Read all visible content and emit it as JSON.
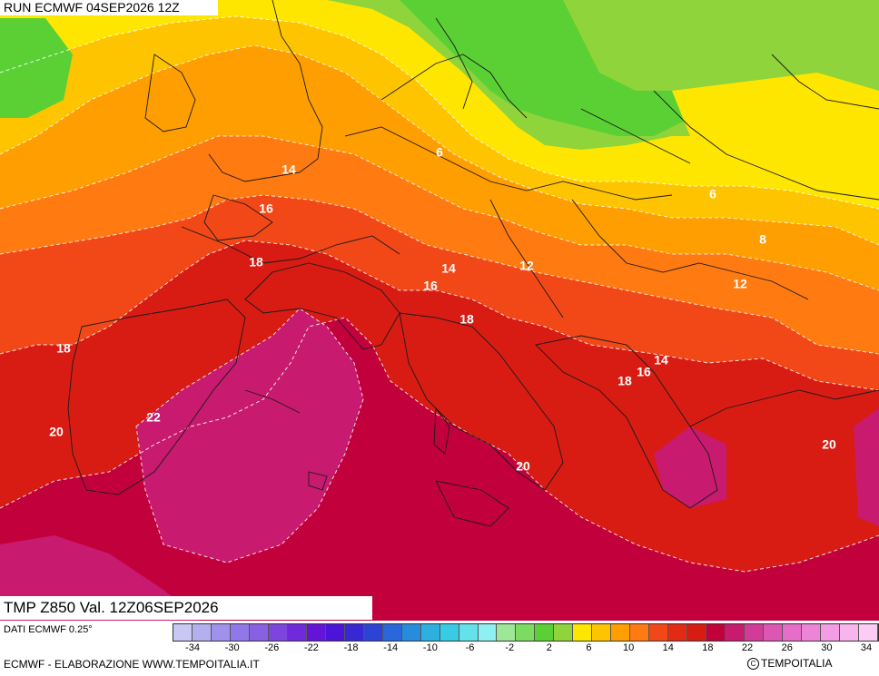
{
  "header": {
    "run_label": "RUN ECMWF 04SEP2026 12Z"
  },
  "map": {
    "field_label": "TMP Z850 Val. 12Z06SEP2026",
    "isotherm_labels": [
      "6",
      "14",
      "16",
      "18",
      "18",
      "20",
      "22",
      "6",
      "8",
      "12",
      "14",
      "16",
      "18",
      "12",
      "14",
      "16",
      "18",
      "20",
      "20"
    ],
    "palette": {
      "c6": "#5ad034",
      "c8": "#8fd43a",
      "c10": "#ffe600",
      "c12": "#ffc400",
      "c14": "#ff9e00",
      "c16": "#ff7a10",
      "c18": "#f24818",
      "c20": "#d81c14",
      "c22": "#c2003c",
      "c24": "#c81a6e"
    }
  },
  "footer": {
    "source": "DATI ECMWF 0.25°",
    "credit": "ECMWF - ELABORAZIONE WWW.TEMPOITALIA.IT",
    "brand": "TEMPOITALIA",
    "brand_icon": "copyright-icon"
  },
  "legend": {
    "colors": [
      "#c8c8f5",
      "#b4b0f0",
      "#a092ec",
      "#9078e8",
      "#8860e2",
      "#7c46de",
      "#702adc",
      "#6414d8",
      "#4c14d8",
      "#3828d4",
      "#2c44d4",
      "#2868dc",
      "#288cdc",
      "#2cb0e0",
      "#38cce4",
      "#64e2ec",
      "#8ef0f0",
      "#9ce896",
      "#7cdc62",
      "#5ad034",
      "#8fd43a",
      "#ffe600",
      "#ffc400",
      "#ff9e00",
      "#ff7a10",
      "#f24818",
      "#e22a14",
      "#d81c14",
      "#c2003c",
      "#c81a6e",
      "#d23c98",
      "#dc56b4",
      "#e66ec8",
      "#ee84d8",
      "#f49ce4",
      "#f8b4ec",
      "#fcccf4"
    ],
    "ticks": [
      "-34",
      "-30",
      "-26",
      "-22",
      "-18",
      "-14",
      "-10",
      "-6",
      "-2",
      "2",
      "6",
      "10",
      "14",
      "18",
      "22",
      "26",
      "30",
      "34"
    ]
  }
}
